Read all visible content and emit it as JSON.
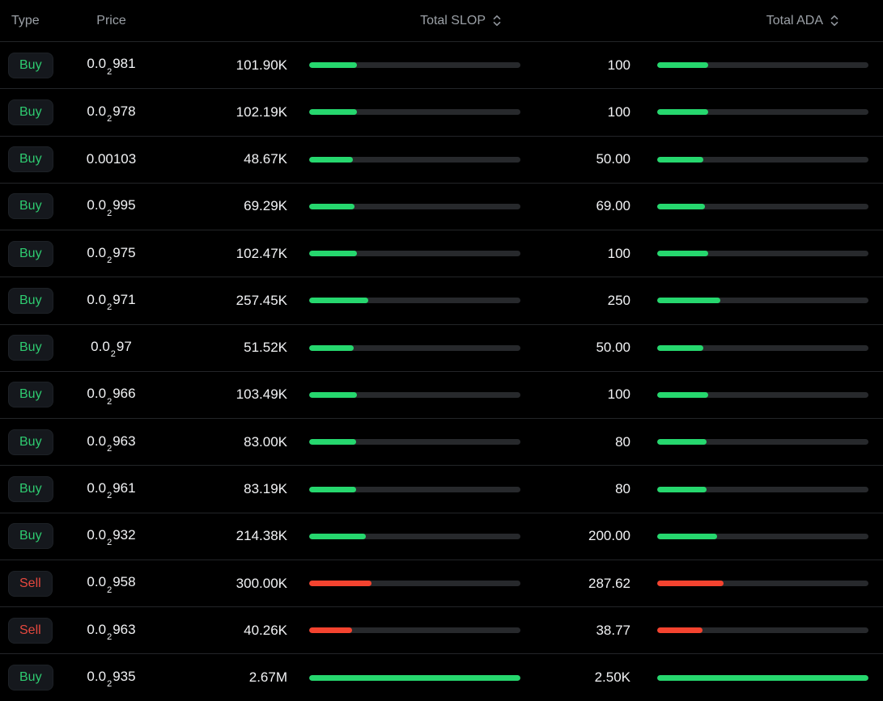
{
  "colors": {
    "background": "#000000",
    "header_text": "#9ba0a6",
    "value_text": "#f2f3f5",
    "buy": "#2ecb70",
    "sell": "#e5483e",
    "bar_green": "#26d76e",
    "bar_red": "#f4432f",
    "bar_track": "#27292c",
    "badge_bg": "#15181d",
    "separator": "#232528"
  },
  "header": {
    "type_label": "Type",
    "price_label": "Price",
    "slop_label": "Total SLOP",
    "ada_label": "Total ADA",
    "sort_icon": "chevron-up-down"
  },
  "rows": [
    {
      "type": "Buy",
      "price_prefix": "0.0",
      "price_sub": "2",
      "price_tail": "981",
      "slop": "101.90K",
      "slop_pct": 22.6,
      "ada": "100",
      "ada_pct": 24.0
    },
    {
      "type": "Buy",
      "price_prefix": "0.0",
      "price_sub": "2",
      "price_tail": "978",
      "slop": "102.19K",
      "slop_pct": 22.6,
      "ada": "100",
      "ada_pct": 24.0
    },
    {
      "type": "Buy",
      "price_prefix": "0.00103",
      "price_sub": "",
      "price_tail": "",
      "slop": "48.67K",
      "slop_pct": 20.7,
      "ada": "50.00",
      "ada_pct": 21.8
    },
    {
      "type": "Buy",
      "price_prefix": "0.0",
      "price_sub": "2",
      "price_tail": "995",
      "slop": "69.29K",
      "slop_pct": 21.5,
      "ada": "69.00",
      "ada_pct": 22.6
    },
    {
      "type": "Buy",
      "price_prefix": "0.0",
      "price_sub": "2",
      "price_tail": "975",
      "slop": "102.47K",
      "slop_pct": 22.6,
      "ada": "100",
      "ada_pct": 24.0
    },
    {
      "type": "Buy",
      "price_prefix": "0.0",
      "price_sub": "2",
      "price_tail": "971",
      "slop": "257.45K",
      "slop_pct": 28.0,
      "ada": "250",
      "ada_pct": 30.0
    },
    {
      "type": "Buy",
      "price_prefix": "0.0",
      "price_sub": "2",
      "price_tail": "97",
      "slop": "51.52K",
      "slop_pct": 21.0,
      "ada": "50.00",
      "ada_pct": 21.8
    },
    {
      "type": "Buy",
      "price_prefix": "0.0",
      "price_sub": "2",
      "price_tail": "966",
      "slop": "103.49K",
      "slop_pct": 22.6,
      "ada": "100",
      "ada_pct": 24.0
    },
    {
      "type": "Buy",
      "price_prefix": "0.0",
      "price_sub": "2",
      "price_tail": "963",
      "slop": "83.00K",
      "slop_pct": 22.2,
      "ada": "80",
      "ada_pct": 23.2
    },
    {
      "type": "Buy",
      "price_prefix": "0.0",
      "price_sub": "2",
      "price_tail": "961",
      "slop": "83.19K",
      "slop_pct": 22.2,
      "ada": "80",
      "ada_pct": 23.2
    },
    {
      "type": "Buy",
      "price_prefix": "0.0",
      "price_sub": "2",
      "price_tail": "932",
      "slop": "214.38K",
      "slop_pct": 26.8,
      "ada": "200.00",
      "ada_pct": 28.4
    },
    {
      "type": "Sell",
      "price_prefix": "0.0",
      "price_sub": "2",
      "price_tail": "958",
      "slop": "300.00K",
      "slop_pct": 29.5,
      "ada": "287.62",
      "ada_pct": 31.4
    },
    {
      "type": "Sell",
      "price_prefix": "0.0",
      "price_sub": "2",
      "price_tail": "963",
      "slop": "40.26K",
      "slop_pct": 20.3,
      "ada": "38.77",
      "ada_pct": 21.5
    },
    {
      "type": "Buy",
      "price_prefix": "0.0",
      "price_sub": "2",
      "price_tail": "935",
      "slop": "2.67M",
      "slop_pct": 100,
      "ada": "2.50K",
      "ada_pct": 100
    }
  ]
}
